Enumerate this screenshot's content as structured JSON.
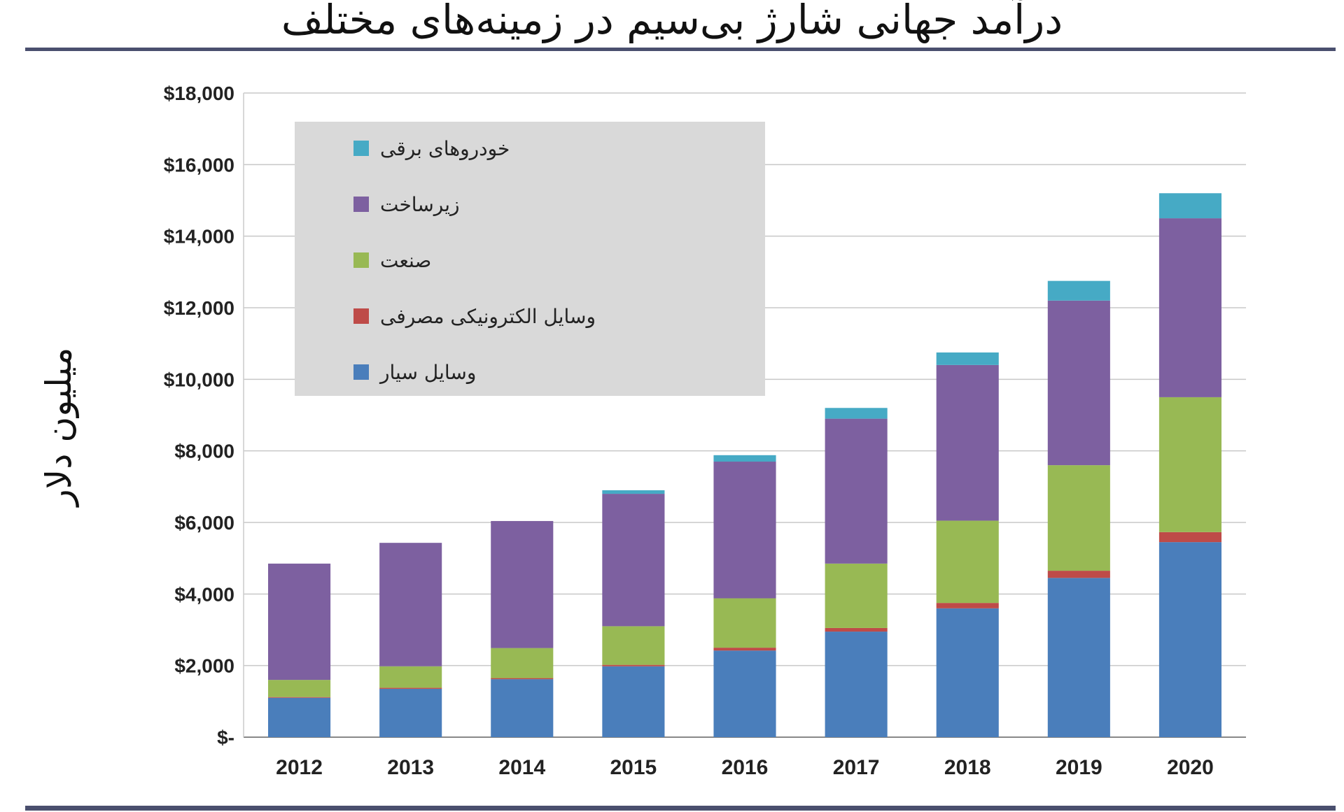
{
  "chart_data": {
    "type": "bar",
    "stacked": true,
    "title": "درآمد جهانی شارژ بی‌سیم در زمینه‌های مختلف",
    "ylabel": "میلیون دلار",
    "ylim": [
      0,
      18000
    ],
    "yticks": [
      {
        "value": 0,
        "label": "$-"
      },
      {
        "value": 2000,
        "label": "$2,000"
      },
      {
        "value": 4000,
        "label": "$4,000"
      },
      {
        "value": 6000,
        "label": "$6,000"
      },
      {
        "value": 8000,
        "label": "$8,000"
      },
      {
        "value": 10000,
        "label": "$10,000"
      },
      {
        "value": 12000,
        "label": "$12,000"
      },
      {
        "value": 14000,
        "label": "$14,000"
      },
      {
        "value": 16000,
        "label": "$16,000"
      },
      {
        "value": 18000,
        "label": "$18,000"
      }
    ],
    "categories": [
      "2012",
      "2013",
      "2014",
      "2015",
      "2016",
      "2017",
      "2018",
      "2019",
      "2020"
    ],
    "series": [
      {
        "name": "وسایل سیار",
        "color": "#4a7ebb",
        "values": [
          1100,
          1350,
          1620,
          1980,
          2420,
          2950,
          3600,
          4450,
          5450
        ]
      },
      {
        "name": "وسایل الکترونیکی مصرفی",
        "color": "#be4b48",
        "values": [
          20,
          30,
          30,
          40,
          80,
          100,
          150,
          200,
          280
        ]
      },
      {
        "name": "صنعت",
        "color": "#98b954",
        "values": [
          480,
          600,
          840,
          1080,
          1380,
          1800,
          2300,
          2950,
          3770
        ]
      },
      {
        "name": "زیرساخت",
        "color": "#7d60a0",
        "values": [
          3250,
          3450,
          3550,
          3700,
          3820,
          4050,
          4350,
          4600,
          5000
        ]
      },
      {
        "name": "خودروهای برقی",
        "color": "#46aac5",
        "values": [
          0,
          0,
          0,
          100,
          180,
          300,
          350,
          550,
          700
        ]
      }
    ],
    "legend_position": "top-left",
    "grid": true
  }
}
